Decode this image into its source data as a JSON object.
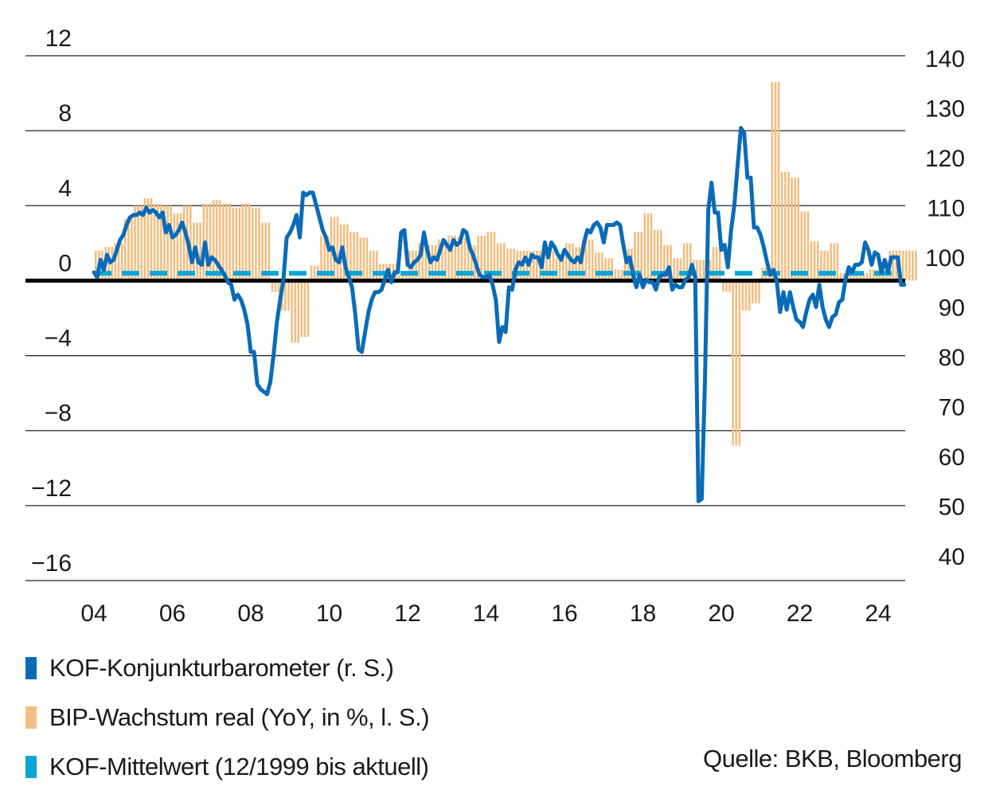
{
  "chart_data": {
    "type": "bar+line",
    "title": "",
    "x_ticks": [
      "04",
      "06",
      "08",
      "10",
      "12",
      "14",
      "16",
      "18",
      "20",
      "22",
      "24"
    ],
    "x_range_years": [
      2004,
      2024.6
    ],
    "left_axis": {
      "label": "BIP-Wachstum real (YoY, in %)",
      "ticks": [
        "12",
        "8",
        "4",
        "0",
        "−4",
        "−8",
        "−12",
        "−16"
      ],
      "tick_values": [
        12,
        8,
        4,
        0,
        -4,
        -8,
        -12,
        -16
      ],
      "range": [
        -16,
        12
      ]
    },
    "right_axis": {
      "label": "KOF-Konjunkturbarometer",
      "ticks": [
        "140",
        "130",
        "120",
        "110",
        "100",
        "90",
        "80",
        "70",
        "60",
        "50",
        "40"
      ],
      "tick_values": [
        140,
        130,
        120,
        110,
        100,
        90,
        80,
        70,
        60,
        50,
        40
      ],
      "range": [
        40,
        140
      ]
    },
    "grid": true,
    "legend_position": "bottom-left",
    "series": [
      {
        "name": "BIP-Wachstum real (YoY, in %, l. S.)",
        "type": "bar",
        "axis": "left",
        "color": "#F2BE82",
        "frequency": "quarterly",
        "start": "2004Q1",
        "values": [
          1.6,
          1.8,
          2.0,
          3.3,
          4.0,
          4.4,
          4.1,
          4.0,
          3.6,
          4.0,
          3.1,
          4.1,
          4.3,
          4.1,
          3.9,
          4.1,
          3.9,
          3.1,
          -0.6,
          -1.6,
          -3.3,
          -3.0,
          0.8,
          2.4,
          3.4,
          3.0,
          2.6,
          2.3,
          1.6,
          0.9,
          0.9,
          0.3,
          1.6,
          2.0,
          1.9,
          2.2,
          2.4,
          2.3,
          1.9,
          2.4,
          2.6,
          2.0,
          1.7,
          1.6,
          1.6,
          1.6,
          1.6,
          1.2,
          2.0,
          1.8,
          2.2,
          1.5,
          1.2,
          0.6,
          1.7,
          2.6,
          3.6,
          2.7,
          1.9,
          1.2,
          2.0,
          1.1,
          1.1,
          1.8,
          -0.6,
          -8.8,
          -1.6,
          -1.2,
          0.7,
          10.6,
          5.8,
          5.5,
          3.7,
          2.1,
          1.6,
          2.0,
          0.4,
          0.3,
          0.4,
          0.6,
          1.1,
          1.6,
          1.6,
          1.6
        ],
        "last_quarter": "2024Q2"
      },
      {
        "name": "KOF-Konjunkturbarometer (r. S.)",
        "type": "line",
        "axis": "right",
        "color": "#0A6BB8",
        "frequency": "monthly",
        "start": "2004-01",
        "values": [
          96.5,
          95.5,
          99,
          97,
          100,
          98.5,
          99,
          101,
          103,
          104,
          106,
          107.5,
          108,
          108,
          108.5,
          108,
          109.5,
          108.5,
          109,
          108.5,
          107.5,
          108.5,
          104.5,
          106,
          103.5,
          104,
          105,
          106.5,
          104.5,
          102,
          98.5,
          101.5,
          98.5,
          98,
          102.5,
          98,
          99.5,
          99,
          98,
          97,
          96,
          94.5,
          94,
          91,
          92,
          91,
          89,
          86,
          80.5,
          80.5,
          74,
          73,
          72.5,
          72,
          74.5,
          80,
          86.5,
          91,
          95,
          103.5,
          104.5,
          106,
          108,
          103.5,
          112.5,
          112,
          112.5,
          112.5,
          110,
          107.5,
          105,
          103.5,
          101,
          101.5,
          99,
          98.5,
          101.5,
          97.5,
          95.5,
          93.5,
          88,
          81,
          80.5,
          84.5,
          88.5,
          91,
          92.5,
          92.5,
          93,
          95,
          97,
          94.5,
          96.5,
          96.5,
          104.5,
          105,
          98,
          97.5,
          98.5,
          99,
          100,
          104.5,
          101,
          98.5,
          99.5,
          99,
          101,
          103,
          102,
          101,
          103,
          102,
          102.5,
          105,
          104.5,
          101.5,
          100,
          98,
          96,
          95.5,
          95.5,
          96,
          94,
          91,
          82.5,
          85.5,
          84.5,
          93.5,
          93,
          97,
          98.5,
          98,
          99.5,
          98,
          100,
          99.5,
          99.5,
          97.5,
          102.5,
          99.5,
          102.5,
          101.5,
          100,
          99,
          101,
          100,
          99,
          98.5,
          99.5,
          98.5,
          102.5,
          105,
          104.5,
          106,
          106.5,
          105.5,
          102.5,
          106,
          106,
          106,
          106.5,
          106,
          102,
          98.5,
          99.5,
          96,
          93.5,
          96,
          93.5,
          95,
          94.5,
          94.5,
          93,
          95.5,
          96,
          96,
          97.5,
          93,
          94,
          93.5,
          93.5,
          95,
          95.5,
          98,
          95.5,
          50.5,
          51,
          75,
          109,
          114.5,
          108.5,
          108.5,
          101,
          102,
          97.5,
          105,
          110,
          118,
          125.5,
          124.5,
          115.5,
          115.5,
          105.5,
          105.5,
          104,
          101.5,
          98.5,
          96,
          97,
          94.5,
          88.5,
          92.5,
          89,
          92.5,
          89.5,
          87,
          86.5,
          85.5,
          88.5,
          91,
          92,
          89.5,
          94,
          89.5,
          87,
          85.5,
          87.5,
          88,
          90.5,
          91,
          95,
          97.5,
          96.5,
          98,
          98,
          98.5,
          102.5,
          101,
          98,
          100.5,
          100,
          96.5,
          99,
          96.5,
          99.5,
          99.5,
          99.5,
          94,
          94
        ]
      },
      {
        "name": "KOF-Mittelwert (12/1999 bis aktuell)",
        "type": "dashed-line",
        "axis": "right",
        "color": "#0AA6D6",
        "value": 96.3,
        "x_from": "2004-01",
        "x_to": "2024-03"
      }
    ],
    "zero_line_left": 0
  },
  "legend": {
    "items": [
      {
        "label": "KOF-Konjunkturbarometer (r. S.)",
        "color": "#0A6BB8"
      },
      {
        "label": "BIP-Wachstum real (YoY, in %, l. S.)",
        "color": "#F2BE82"
      },
      {
        "label": "KOF-Mittelwert (12/1999 bis aktuell)",
        "color": "#0AA6D6"
      }
    ]
  },
  "source": "Quelle: BKB, Bloomberg"
}
